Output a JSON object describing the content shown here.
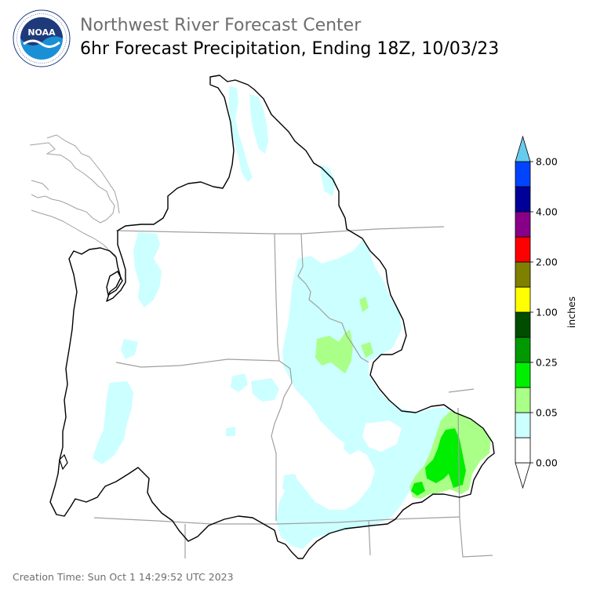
{
  "header": {
    "agency": "Northwest River Forecast Center",
    "product": "6hr Forecast Precipitation, Ending 18Z, 10/03/23"
  },
  "logo": {
    "text": "NOAA",
    "ring_text": "NATIONAL OCEANIC AND ATMOSPHERIC ADMINISTRATION · U.S. DEPARTMENT OF COMMERCE",
    "colors": {
      "ring": "#ffffff",
      "top": "#1f3a7a",
      "bottom": "#1a8fd6",
      "gull": "#ffffff"
    }
  },
  "footer": {
    "creation_time": "Creation Time: Sun Oct 1 14:29:52 UTC 2023"
  },
  "legend": {
    "axis_label": "inches",
    "units": "inches",
    "tick_labels": [
      "0.00",
      "0.05",
      "0.25",
      "1.00",
      "2.00",
      "4.00",
      "8.00"
    ],
    "bins": [
      {
        "label": "0.00",
        "color": "#ffffff"
      },
      {
        "label": "",
        "color": "#ffffff"
      },
      {
        "label": "0.05",
        "color": "#ccffff"
      },
      {
        "label": "",
        "color": "#aaff88"
      },
      {
        "label": "0.25",
        "color": "#00ee00"
      },
      {
        "label": "",
        "color": "#009900"
      },
      {
        "label": "1.00",
        "color": "#004d00"
      },
      {
        "label": "",
        "color": "#ffff00"
      },
      {
        "label": "2.00",
        "color": "#7f7f00"
      },
      {
        "label": "",
        "color": "#ff0000"
      },
      {
        "label": "4.00",
        "color": "#880088"
      },
      {
        "label": "",
        "color": "#000099"
      },
      {
        "label": "8.00",
        "color": "#0044ff"
      },
      {
        "label": "",
        "color": "#66ccee"
      }
    ]
  },
  "map": {
    "colors": {
      "basin_outline": "#000000",
      "state_lines": "#a0a0a0",
      "coastline": "#a0a0a0",
      "light_precip": "#ccffff",
      "moderate_precip": "#aaff88",
      "heavy_precip": "#00ee00"
    }
  }
}
